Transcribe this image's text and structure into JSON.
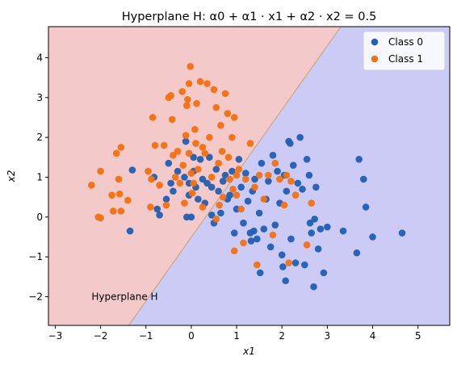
{
  "chart_data": {
    "type": "scatter",
    "title": "Hyperplane H: α0 + α1 · x1 + α2 · x2 = 0.5",
    "xlabel": "x1",
    "ylabel": "x2",
    "xlim": [
      -3.15,
      5.7
    ],
    "ylim": [
      -2.72,
      4.78
    ],
    "xticks": [
      -3,
      -2,
      -1,
      0,
      1,
      2,
      3,
      4,
      5
    ],
    "yticks": [
      -2,
      -1,
      0,
      1,
      2,
      3,
      4
    ],
    "grid": false,
    "legend_position": "top-right",
    "regions": {
      "boundary_line": [
        [
          -1.38,
          -2.72
        ],
        [
          3.3,
          4.78
        ]
      ],
      "upper_left_color": "#f3c9c9",
      "lower_right_color": "#cbcbf5",
      "boundary_color": "#c8a070"
    },
    "annotation": {
      "text": "Hyperplane H",
      "x": -2.2,
      "y": -2.0
    },
    "series": [
      {
        "name": "Class 0",
        "color": "#1f5fb4",
        "points": [
          [
            -1.35,
            -0.35
          ],
          [
            -1.3,
            1.18
          ],
          [
            -0.82,
            1.0
          ],
          [
            -0.75,
            0.2
          ],
          [
            -0.7,
            0.05
          ],
          [
            -0.55,
            0.45
          ],
          [
            -0.5,
            1.35
          ],
          [
            -0.45,
            0.85
          ],
          [
            -0.4,
            0.65
          ],
          [
            -0.3,
            1.15
          ],
          [
            -0.15,
            1.0
          ],
          [
            -0.12,
            1.9
          ],
          [
            -0.1,
            0.0
          ],
          [
            -0.05,
            0.85
          ],
          [
            0.0,
            0.0
          ],
          [
            0.05,
            1.15
          ],
          [
            0.1,
            0.75
          ],
          [
            0.15,
            0.45
          ],
          [
            0.2,
            1.45
          ],
          [
            0.25,
            0.95
          ],
          [
            0.3,
            0.35
          ],
          [
            0.35,
            0.85
          ],
          [
            0.4,
            1.5
          ],
          [
            0.45,
            0.05
          ],
          [
            0.5,
            -0.15
          ],
          [
            0.55,
            1.2
          ],
          [
            0.6,
            0.65
          ],
          [
            0.65,
            0.1
          ],
          [
            0.7,
            0.9
          ],
          [
            0.75,
            1.05
          ],
          [
            0.8,
            0.45
          ],
          [
            0.85,
            0.55
          ],
          [
            0.9,
            1.15
          ],
          [
            0.95,
            -0.4
          ],
          [
            1.0,
            0.2
          ],
          [
            1.05,
            1.45
          ],
          [
            1.1,
            0.75
          ],
          [
            1.15,
            -0.15
          ],
          [
            1.2,
            1.1
          ],
          [
            1.25,
            0.4
          ],
          [
            1.3,
            -0.4
          ],
          [
            1.32,
            -0.6
          ],
          [
            1.35,
            0.65
          ],
          [
            1.38,
            -0.35
          ],
          [
            1.4,
            0.95
          ],
          [
            1.45,
            -0.55
          ],
          [
            1.5,
            0.1
          ],
          [
            1.52,
            -1.4
          ],
          [
            1.55,
            1.35
          ],
          [
            1.6,
            -0.3
          ],
          [
            1.65,
            0.45
          ],
          [
            1.7,
            0.9
          ],
          [
            1.75,
            -0.75
          ],
          [
            1.8,
            1.55
          ],
          [
            1.85,
            -0.2
          ],
          [
            1.9,
            1.15
          ],
          [
            1.95,
            0.35
          ],
          [
            2.0,
            -0.95
          ],
          [
            2.02,
            -1.25
          ],
          [
            2.05,
            1.05
          ],
          [
            2.08,
            -1.6
          ],
          [
            2.1,
            0.65
          ],
          [
            2.15,
            1.9
          ],
          [
            2.18,
            1.85
          ],
          [
            2.2,
            -0.55
          ],
          [
            2.25,
            1.3
          ],
          [
            2.3,
            -1.15
          ],
          [
            2.35,
            0.85
          ],
          [
            2.4,
            2.0
          ],
          [
            2.45,
            0.7
          ],
          [
            2.5,
            -1.2
          ],
          [
            2.55,
            1.45
          ],
          [
            2.6,
            1.05
          ],
          [
            2.62,
            -0.15
          ],
          [
            2.65,
            -0.4
          ],
          [
            2.7,
            -1.75
          ],
          [
            2.72,
            -0.05
          ],
          [
            2.75,
            0.75
          ],
          [
            2.8,
            -0.8
          ],
          [
            2.85,
            -0.3
          ],
          [
            2.92,
            -1.4
          ],
          [
            3.0,
            -0.25
          ],
          [
            3.35,
            -0.35
          ],
          [
            3.65,
            -0.9
          ],
          [
            3.7,
            1.45
          ],
          [
            3.8,
            0.95
          ],
          [
            3.85,
            0.25
          ],
          [
            4.0,
            -0.5
          ],
          [
            4.65,
            -0.4
          ],
          [
            0.05,
            1.5
          ],
          [
            -0.05,
            0.55
          ],
          [
            0.45,
            0.75
          ]
        ]
      },
      {
        "name": "Class 1",
        "color": "#f5700f",
        "points": [
          [
            -2.2,
            0.8
          ],
          [
            -2.05,
            0.0
          ],
          [
            -2.0,
            1.15
          ],
          [
            -2.0,
            -0.02
          ],
          [
            -1.75,
            0.55
          ],
          [
            -1.72,
            0.15
          ],
          [
            -1.65,
            1.6
          ],
          [
            -1.6,
            0.95
          ],
          [
            -1.58,
            0.58
          ],
          [
            -1.55,
            1.75
          ],
          [
            -1.4,
            0.42
          ],
          [
            -0.95,
            1.15
          ],
          [
            -0.9,
            0.25
          ],
          [
            -0.88,
            0.95
          ],
          [
            -0.85,
            2.5
          ],
          [
            -0.8,
            1.8
          ],
          [
            -0.7,
            0.8
          ],
          [
            -0.6,
            1.8
          ],
          [
            -0.55,
            0.3
          ],
          [
            -0.5,
            3.0
          ],
          [
            -0.45,
            3.05
          ],
          [
            -0.42,
            2.45
          ],
          [
            -0.4,
            1.55
          ],
          [
            -0.35,
            1.0
          ],
          [
            -0.3,
            1.65
          ],
          [
            -0.25,
            0.85
          ],
          [
            -0.2,
            3.15
          ],
          [
            -0.18,
            1.3
          ],
          [
            -0.15,
            0.35
          ],
          [
            -0.12,
            2.05
          ],
          [
            -0.1,
            2.8
          ],
          [
            -0.08,
            2.95
          ],
          [
            -0.05,
            3.35
          ],
          [
            -0.02,
            3.78
          ],
          [
            0.0,
            1.1
          ],
          [
            0.02,
            0.6
          ],
          [
            0.05,
            0.85
          ],
          [
            0.08,
            2.2
          ],
          [
            0.1,
            1.85
          ],
          [
            0.12,
            2.85
          ],
          [
            0.15,
            1.2
          ],
          [
            0.2,
            3.4
          ],
          [
            0.25,
            0.25
          ],
          [
            0.3,
            1.6
          ],
          [
            0.35,
            3.35
          ],
          [
            0.4,
            2.0
          ],
          [
            0.45,
            1.0
          ],
          [
            0.5,
            3.2
          ],
          [
            0.55,
            2.75
          ],
          [
            0.6,
            1.35
          ],
          [
            0.62,
            0.3
          ],
          [
            0.65,
            2.3
          ],
          [
            0.68,
            1.65
          ],
          [
            0.7,
            0.5
          ],
          [
            0.75,
            3.1
          ],
          [
            0.8,
            2.6
          ],
          [
            0.82,
            1.5
          ],
          [
            0.85,
            0.95
          ],
          [
            0.9,
            2.0
          ],
          [
            0.92,
            0.7
          ],
          [
            0.95,
            2.5
          ],
          [
            1.0,
            1.05
          ],
          [
            1.05,
            1.2
          ],
          [
            1.1,
            0.2
          ],
          [
            1.15,
            -0.65
          ],
          [
            1.2,
            0.95
          ],
          [
            1.3,
            1.85
          ],
          [
            1.4,
            0.75
          ],
          [
            1.45,
            -1.2
          ],
          [
            1.5,
            1.05
          ],
          [
            1.6,
            0.45
          ],
          [
            1.7,
            1.05
          ],
          [
            1.8,
            -0.45
          ],
          [
            1.85,
            1.35
          ],
          [
            1.95,
            0.95
          ],
          [
            2.05,
            0.3
          ],
          [
            2.1,
            1.05
          ],
          [
            2.15,
            -1.15
          ],
          [
            2.2,
            0.9
          ],
          [
            2.3,
            0.55
          ],
          [
            2.55,
            -0.7
          ],
          [
            2.65,
            0.35
          ],
          [
            0.55,
            -0.05
          ],
          [
            0.95,
            -0.85
          ],
          [
            -0.05,
            1.6
          ],
          [
            0.25,
            1.75
          ],
          [
            1.0,
            0.55
          ],
          [
            -1.55,
            0.15
          ]
        ]
      }
    ]
  }
}
